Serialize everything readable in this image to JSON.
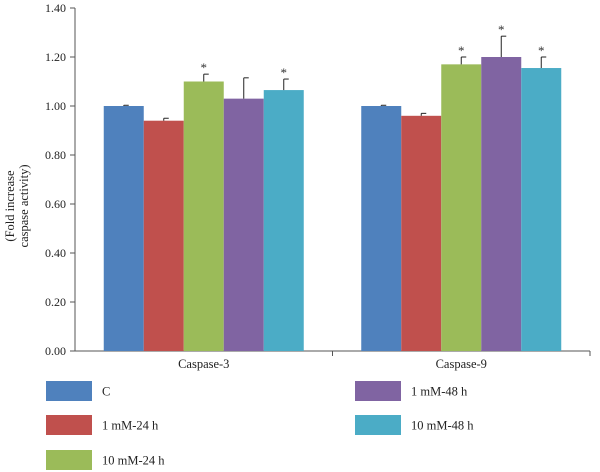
{
  "chart_data": {
    "type": "bar",
    "categories": [
      "Caspase-3",
      "Caspase-9"
    ],
    "series": [
      {
        "name": "C",
        "color": "#4F81BD",
        "values": [
          1.0,
          1.0
        ],
        "errors": [
          0.003,
          0.003
        ],
        "significant": [
          false,
          false
        ]
      },
      {
        "name": "1 mM-24 h",
        "color": "#C0504D",
        "values": [
          0.94,
          0.96
        ],
        "errors": [
          0.01,
          0.01
        ],
        "significant": [
          false,
          false
        ]
      },
      {
        "name": "10 mM-24 h",
        "color": "#9BBB59",
        "values": [
          1.1,
          1.17
        ],
        "errors": [
          0.03,
          0.03
        ],
        "significant": [
          true,
          true
        ]
      },
      {
        "name": "1 mM-48 h",
        "color": "#8064A2",
        "values": [
          1.03,
          1.2
        ],
        "errors": [
          0.085,
          0.085
        ],
        "significant": [
          false,
          true
        ]
      },
      {
        "name": "10 mM-48 h",
        "color": "#4BACC6",
        "values": [
          1.065,
          1.155
        ],
        "errors": [
          0.045,
          0.045
        ],
        "significant": [
          true,
          true
        ]
      }
    ],
    "ylabel_lines": [
      "(Fold increase",
      "caspase activity)"
    ],
    "ylim": [
      0,
      1.4
    ],
    "yticks": [
      "0.00",
      "0.20",
      "0.40",
      "0.60",
      "0.80",
      "1.00",
      "1.20",
      "1.40"
    ],
    "significance_marker": "*",
    "grid": false,
    "legend_position": "bottom"
  }
}
